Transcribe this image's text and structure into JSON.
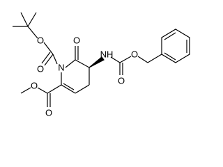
{
  "structure": {
    "atoms": [
      "O",
      "O",
      "N",
      "O",
      "NH",
      "O",
      "O",
      "O",
      "O"
    ]
  }
}
